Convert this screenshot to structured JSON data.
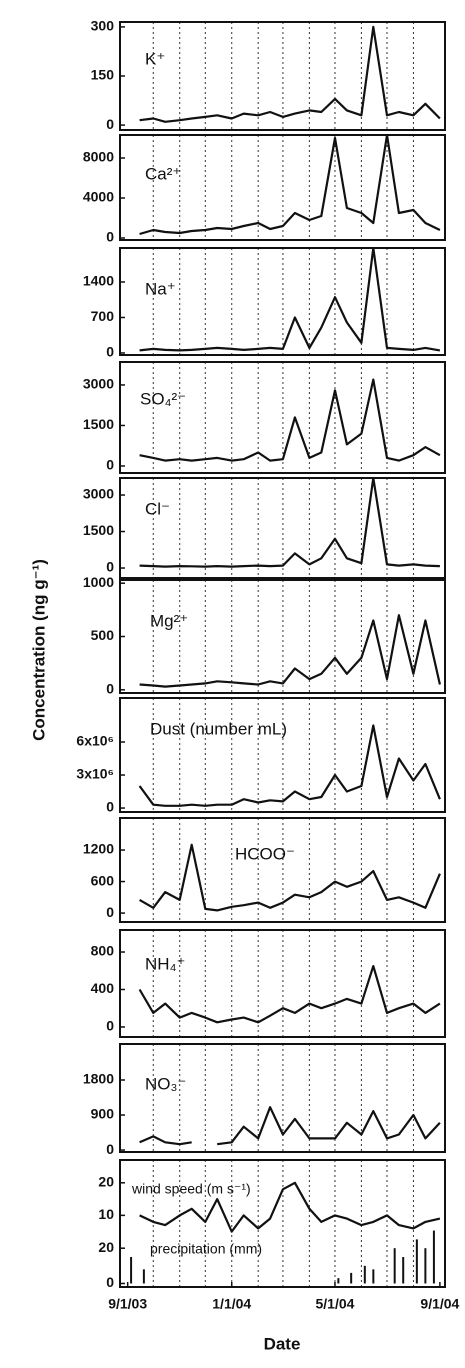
{
  "chart_data": {
    "type": "line",
    "ylabel": "Concentration (ng g⁻¹)",
    "xlabel": "Date",
    "color": "#111111",
    "x": [
      "2003-09-15",
      "2003-10-01",
      "2003-10-15",
      "2003-11-01",
      "2003-11-15",
      "2003-12-01",
      "2003-12-15",
      "2004-01-01",
      "2004-01-15",
      "2004-02-01",
      "2004-02-15",
      "2004-03-01",
      "2004-03-15",
      "2004-04-01",
      "2004-04-15",
      "2004-05-01",
      "2004-05-15",
      "2004-06-01",
      "2004-06-15",
      "2004-07-01",
      "2004-07-15",
      "2004-08-01",
      "2004-08-15",
      "2004-09-01"
    ],
    "xlim": [
      "2003-08-23",
      "2004-09-07"
    ],
    "xticks": [
      {
        "value": "2003-09-01",
        "label": "9/1/03"
      },
      {
        "value": "2004-01-01",
        "label": "1/1/04"
      },
      {
        "value": "2004-05-01",
        "label": "5/1/04"
      },
      {
        "value": "2004-09-01",
        "label": "9/1/04"
      }
    ],
    "xgrid": [
      "2003-10-01",
      "2003-11-01",
      "2003-12-01",
      "2004-01-01",
      "2004-02-01",
      "2004-03-01",
      "2004-04-01",
      "2004-05-01",
      "2004-06-01",
      "2004-07-01",
      "2004-08-01"
    ],
    "panels": [
      {
        "label": "K⁺",
        "ylim": [
          -15,
          315
        ],
        "yticks": [
          0,
          150,
          300
        ],
        "values": [
          15,
          20,
          10,
          15,
          20,
          25,
          30,
          20,
          35,
          30,
          40,
          25,
          35,
          45,
          40,
          80,
          45,
          30,
          300,
          30,
          40,
          30,
          65,
          20
        ]
      },
      {
        "label": "Ca²⁺",
        "ylim": [
          -200,
          10300
        ],
        "yticks": [
          0,
          4000,
          8000
        ],
        "values": [
          400,
          800,
          600,
          500,
          700,
          800,
          1000,
          900,
          1200,
          1500,
          900,
          1200,
          2500,
          1800,
          2200,
          10000,
          3000,
          2500,
          1500,
          10300,
          2500,
          2800,
          1500,
          800
        ]
      },
      {
        "label": "Na⁺",
        "ylim": [
          -40,
          2070
        ],
        "yticks": [
          0,
          700,
          1400
        ],
        "values": [
          50,
          80,
          60,
          50,
          60,
          80,
          100,
          80,
          60,
          80,
          100,
          80,
          700,
          100,
          500,
          1100,
          600,
          200,
          2070,
          100,
          80,
          60,
          100,
          50
        ]
      },
      {
        "label": "SO₄²⁻",
        "ylim": [
          -260,
          3850
        ],
        "yticks": [
          0,
          1500,
          3000
        ],
        "values": [
          400,
          300,
          200,
          250,
          200,
          250,
          300,
          200,
          250,
          500,
          200,
          250,
          1800,
          300,
          500,
          2800,
          800,
          1200,
          3200,
          300,
          200,
          400,
          700,
          400
        ]
      },
      {
        "label": "Cl⁻",
        "ylim": [
          -410,
          3700
        ],
        "yticks": [
          0,
          1500,
          3000
        ],
        "values": [
          100,
          80,
          60,
          80,
          70,
          60,
          80,
          60,
          80,
          100,
          80,
          100,
          600,
          150,
          400,
          1200,
          400,
          200,
          3700,
          150,
          100,
          150,
          100,
          80
        ]
      },
      {
        "label": "Mg²⁺",
        "ylim": [
          -30,
          1030
        ],
        "yticks": [
          0,
          500,
          1000
        ],
        "values": [
          50,
          40,
          30,
          40,
          50,
          60,
          80,
          70,
          60,
          50,
          80,
          60,
          200,
          100,
          150,
          300,
          150,
          300,
          650,
          100,
          700,
          150,
          650,
          50
        ]
      },
      {
        "label": "Dust (number mL)",
        "ylim": [
          -360000,
          10000000
        ],
        "yticks": [
          0,
          {
            "value": 3000000,
            "label": "3x10⁶"
          },
          {
            "value": 6000000,
            "label": "6x10⁶"
          }
        ],
        "values": [
          2000000,
          300000,
          200000,
          200000,
          300000,
          200000,
          300000,
          300000,
          800000,
          500000,
          700000,
          600000,
          1500000,
          800000,
          1000000,
          3000000,
          1500000,
          2000000,
          7500000,
          1000000,
          4500000,
          2500000,
          4000000,
          800000
        ]
      },
      {
        "label": "HCOO⁻",
        "ylim": [
          -170,
          1810
        ],
        "yticks": [
          0,
          600,
          1200
        ],
        "values": [
          250,
          100,
          400,
          250,
          1300,
          80,
          50,
          120,
          150,
          200,
          100,
          200,
          350,
          300,
          400,
          600,
          500,
          600,
          800,
          250,
          300,
          200,
          100,
          750
        ]
      },
      {
        "label": "NH₄⁺",
        "ylim": [
          -107,
          1035
        ],
        "yticks": [
          0,
          400,
          800
        ],
        "values": [
          400,
          150,
          250,
          100,
          150,
          100,
          50,
          80,
          100,
          50,
          120,
          200,
          150,
          250,
          200,
          250,
          300,
          250,
          650,
          150,
          200,
          250,
          150,
          250
        ]
      },
      {
        "label": "NO₃⁻",
        "ylim": [
          -50,
          2725
        ],
        "yticks": [
          0,
          900,
          1800
        ],
        "values": [
          200,
          350,
          200,
          150,
          200,
          null,
          150,
          200,
          600,
          300,
          1100,
          400,
          800,
          300,
          300,
          300,
          700,
          400,
          1000,
          300,
          400,
          900,
          300,
          700
        ]
      },
      {
        "ylim": [
          -12,
          27
        ],
        "yticks": [
          10,
          20
        ],
        "y2lim": [
          -2,
          70
        ],
        "y2ticks": [
          0,
          20
        ],
        "series": [
          {
            "name": "wind speed (m s⁻¹)",
            "values": [
              10,
              8,
              7,
              10,
              12,
              8,
              15,
              5,
              10,
              6,
              9,
              18,
              20,
              12,
              8,
              10,
              9,
              7,
              8,
              10,
              7,
              6,
              8,
              9
            ]
          },
          {
            "name": "precipitation (mm)",
            "type": "bar",
            "axis": "y2",
            "x": [
              "2003-09-05",
              "2003-09-20",
              "2004-05-05",
              "2004-05-20",
              "2004-06-05",
              "2004-06-15",
              "2004-07-10",
              "2004-07-20",
              "2004-08-05",
              "2004-08-15",
              "2004-08-25"
            ],
            "values": [
              15,
              8,
              3,
              6,
              10,
              8,
              20,
              15,
              25,
              20,
              30
            ]
          }
        ]
      }
    ]
  }
}
